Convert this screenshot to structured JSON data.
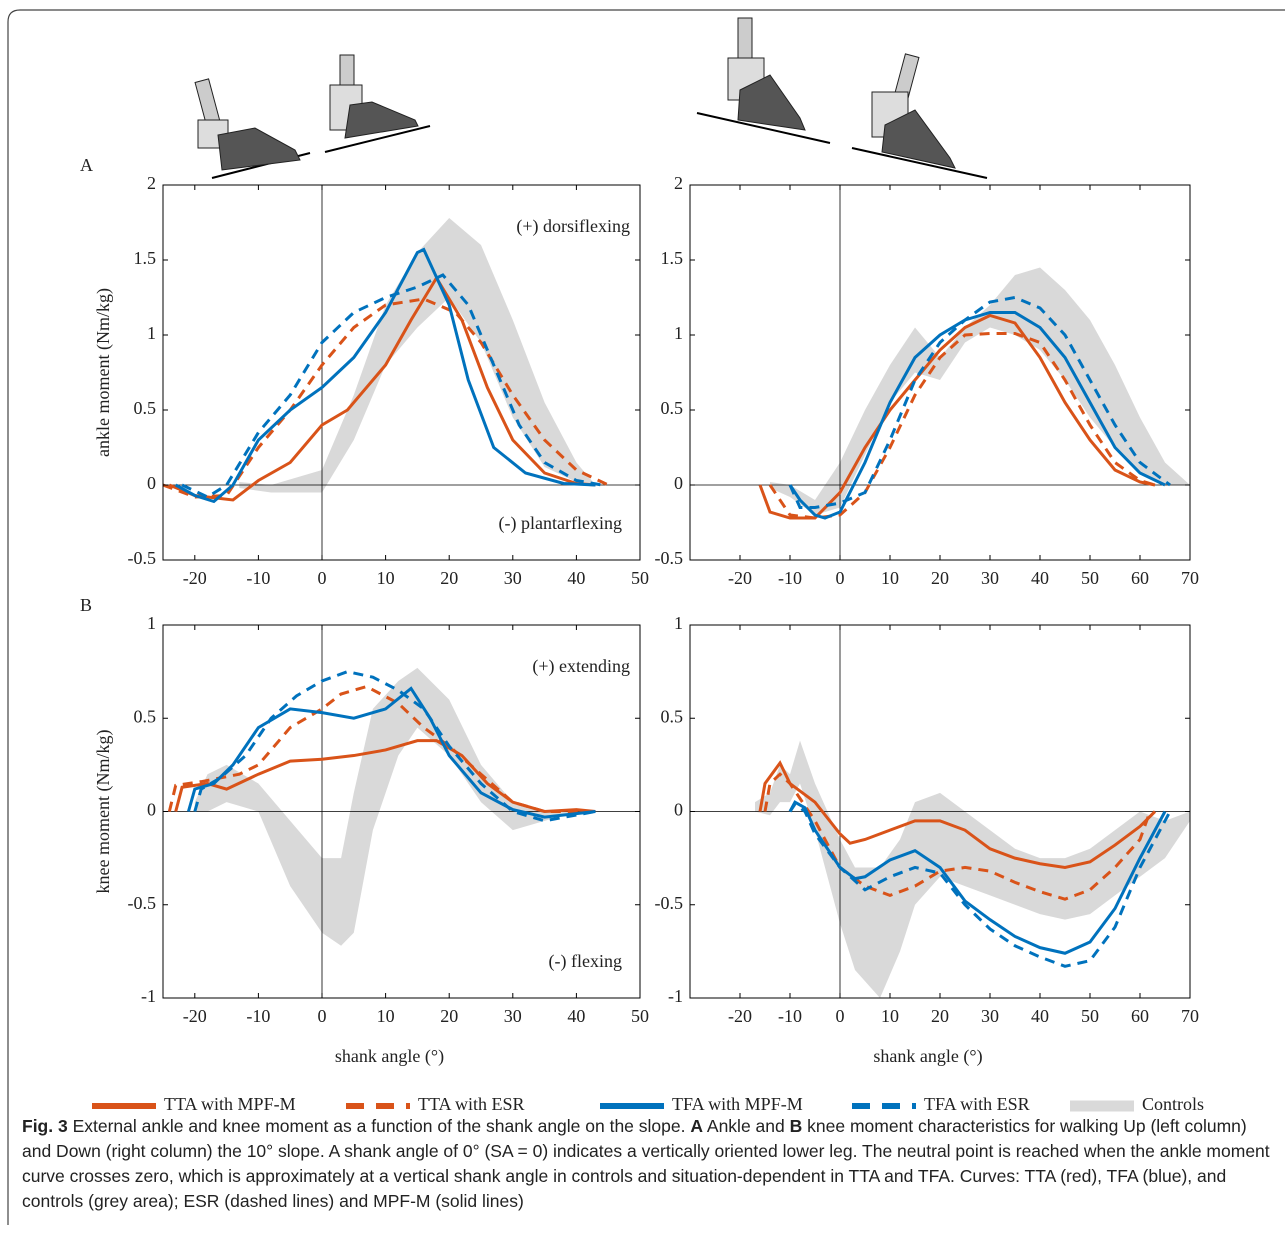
{
  "chart_data": [
    {
      "type": "line",
      "panel_label": "A",
      "ylabel": "ankle moment (Nm/kg)",
      "annotations": [
        "(+) dorsiflexing",
        "(-) plantarflexing"
      ],
      "xlim": [
        -25,
        50
      ],
      "ylim": [
        -0.5,
        2
      ],
      "xticks": [
        -20,
        -10,
        0,
        10,
        20,
        30,
        40,
        50
      ],
      "yticks": [
        -0.5,
        0,
        0.5,
        1,
        1.5,
        2
      ],
      "band": {
        "name": "Controls",
        "color": "#d9d9d9",
        "x": [
          -13,
          -8,
          0,
          5,
          10,
          15,
          20,
          25,
          30,
          35,
          40,
          43
        ],
        "lower": [
          -0.02,
          -0.05,
          -0.05,
          0.3,
          0.8,
          1.05,
          1.25,
          0.95,
          0.45,
          0.12,
          0.02,
          0
        ],
        "upper": [
          0.02,
          0,
          0.1,
          0.6,
          1.2,
          1.55,
          1.78,
          1.6,
          1.1,
          0.55,
          0.15,
          0
        ]
      },
      "series": [
        {
          "name": "TTA with MPF-M",
          "color": "#d95319",
          "dashed": false,
          "x": [
            -24,
            -20,
            -14,
            -10,
            -5,
            0,
            4,
            10,
            14,
            18,
            22,
            26,
            30,
            35,
            40,
            43
          ],
          "values": [
            0,
            -0.07,
            -0.1,
            0.03,
            0.15,
            0.4,
            0.5,
            0.8,
            1.1,
            1.38,
            1.1,
            0.65,
            0.3,
            0.08,
            0.01,
            0
          ]
        },
        {
          "name": "TTA with ESR",
          "color": "#d95319",
          "dashed": true,
          "x": [
            -25,
            -20,
            -15,
            -10,
            -5,
            0,
            5,
            10,
            16,
            21,
            25,
            30,
            35,
            40,
            45
          ],
          "values": [
            0,
            -0.08,
            -0.07,
            0.25,
            0.5,
            0.8,
            1.05,
            1.2,
            1.24,
            1.15,
            0.95,
            0.6,
            0.3,
            0.1,
            0
          ]
        },
        {
          "name": "TFA with MPF-M",
          "color": "#0072bd",
          "dashed": false,
          "x": [
            -23,
            -20,
            -17,
            -14,
            -10,
            -5,
            0,
            5,
            10,
            15,
            16,
            20,
            23,
            27,
            32,
            38,
            43
          ],
          "values": [
            0,
            -0.07,
            -0.11,
            0,
            0.3,
            0.5,
            0.65,
            0.85,
            1.15,
            1.55,
            1.57,
            1.2,
            0.7,
            0.25,
            0.08,
            0.01,
            0
          ]
        },
        {
          "name": "TFA with ESR",
          "color": "#0072bd",
          "dashed": true,
          "x": [
            -22,
            -18,
            -15,
            -10,
            -5,
            0,
            5,
            10,
            15,
            19,
            23,
            27,
            31,
            35,
            40,
            44
          ],
          "values": [
            0,
            -0.08,
            0,
            0.35,
            0.6,
            0.95,
            1.15,
            1.25,
            1.32,
            1.4,
            1.2,
            0.8,
            0.4,
            0.15,
            0.03,
            0
          ]
        }
      ]
    },
    {
      "type": "line",
      "xlim": [
        -30,
        70
      ],
      "ylim": [
        -0.5,
        2
      ],
      "xticks": [
        -20,
        -10,
        0,
        10,
        20,
        30,
        40,
        50,
        60,
        70
      ],
      "yticks": [
        -0.5,
        0,
        0.5,
        1,
        1.5,
        2
      ],
      "band": {
        "color": "#d9d9d9",
        "x": [
          -14,
          -10,
          -5,
          0,
          5,
          10,
          15,
          20,
          25,
          30,
          35,
          40,
          45,
          50,
          55,
          60,
          65,
          70
        ],
        "lower": [
          -0.02,
          -0.08,
          -0.2,
          -0.15,
          0.2,
          0.55,
          0.75,
          0.7,
          0.95,
          1.05,
          1.0,
          0.9,
          0.7,
          0.45,
          0.25,
          0.08,
          0,
          0
        ],
        "upper": [
          0.02,
          0,
          -0.1,
          0.15,
          0.5,
          0.8,
          1.05,
          0.85,
          1.05,
          1.2,
          1.4,
          1.45,
          1.3,
          1.1,
          0.8,
          0.45,
          0.15,
          0
        ]
      },
      "series": [
        {
          "color": "#d95319",
          "dashed": false,
          "x": [
            -16,
            -14,
            -10,
            -5,
            0,
            5,
            10,
            20,
            25,
            30,
            35,
            40,
            45,
            50,
            55,
            60,
            63
          ],
          "values": [
            0,
            -0.18,
            -0.22,
            -0.22,
            -0.05,
            0.25,
            0.5,
            0.9,
            1.05,
            1.13,
            1.08,
            0.85,
            0.55,
            0.3,
            0.1,
            0.02,
            0
          ]
        },
        {
          "color": "#d95319",
          "dashed": true,
          "x": [
            -14,
            -10,
            -5,
            0,
            5,
            10,
            15,
            20,
            25,
            30,
            35,
            40,
            45,
            50,
            55,
            60,
            63
          ],
          "values": [
            0,
            -0.2,
            -0.22,
            -0.2,
            -0.05,
            0.25,
            0.6,
            0.85,
            1.0,
            1.01,
            1.01,
            0.95,
            0.7,
            0.4,
            0.15,
            0.03,
            0
          ]
        },
        {
          "color": "#0072bd",
          "dashed": false,
          "x": [
            -10,
            -8,
            -5,
            -3,
            0,
            5,
            10,
            15,
            20,
            25,
            30,
            35,
            40,
            45,
            50,
            55,
            60,
            65
          ],
          "values": [
            0,
            -0.1,
            -0.2,
            -0.22,
            -0.18,
            0.15,
            0.55,
            0.85,
            1.0,
            1.1,
            1.15,
            1.15,
            1.05,
            0.85,
            0.55,
            0.25,
            0.08,
            0
          ]
        },
        {
          "color": "#0072bd",
          "dashed": true,
          "x": [
            -10,
            -8,
            -5,
            0,
            5,
            10,
            15,
            20,
            25,
            30,
            35,
            40,
            45,
            50,
            55,
            60,
            66
          ],
          "values": [
            0,
            -0.15,
            -0.15,
            -0.12,
            -0.05,
            0.3,
            0.7,
            0.95,
            1.1,
            1.22,
            1.25,
            1.18,
            1.0,
            0.7,
            0.4,
            0.15,
            0
          ]
        }
      ]
    },
    {
      "type": "line",
      "panel_label": "B",
      "ylabel": "knee moment (Nm/kg)",
      "xlabel": "shank angle (°)",
      "annotations": [
        "(+) extending",
        "(-) flexing"
      ],
      "xlim": [
        -25,
        50
      ],
      "ylim": [
        -1,
        1
      ],
      "xticks": [
        -20,
        -10,
        0,
        10,
        20,
        30,
        40,
        50
      ],
      "yticks": [
        -1,
        -0.5,
        0,
        0.5,
        1
      ],
      "band": {
        "color": "#d9d9d9",
        "x": [
          -20,
          -18,
          -15,
          -10,
          -5,
          0,
          3,
          5,
          8,
          12,
          15,
          20,
          25,
          30,
          35,
          40
        ],
        "lower": [
          0,
          0,
          0.05,
          0,
          -0.4,
          -0.65,
          -0.72,
          -0.65,
          -0.1,
          0.3,
          0.45,
          0.3,
          0.05,
          -0.1,
          -0.05,
          0
        ],
        "upper": [
          0.05,
          0.2,
          0.25,
          0.15,
          -0.05,
          -0.25,
          -0.25,
          0.1,
          0.55,
          0.7,
          0.77,
          0.6,
          0.25,
          0.05,
          0,
          0
        ]
      },
      "series": [
        {
          "color": "#d95319",
          "dashed": false,
          "x": [
            -23,
            -22,
            -18,
            -15,
            -10,
            -5,
            0,
            5,
            10,
            15,
            18,
            22,
            26,
            30,
            35,
            40,
            43
          ],
          "values": [
            0,
            0.13,
            0.15,
            0.12,
            0.2,
            0.27,
            0.28,
            0.3,
            0.33,
            0.38,
            0.38,
            0.3,
            0.15,
            0.05,
            0,
            0.01,
            0
          ]
        },
        {
          "color": "#d95319",
          "dashed": true,
          "x": [
            -24,
            -23,
            -19,
            -13,
            -10,
            -5,
            0,
            3,
            7,
            12,
            16,
            20,
            25,
            30,
            35,
            43
          ],
          "values": [
            0,
            0.14,
            0.16,
            0.2,
            0.25,
            0.45,
            0.55,
            0.63,
            0.67,
            0.58,
            0.45,
            0.35,
            0.2,
            0.05,
            0,
            0
          ]
        },
        {
          "color": "#0072bd",
          "dashed": false,
          "x": [
            -21,
            -20,
            -17,
            -14,
            -10,
            -5,
            0,
            5,
            10,
            14,
            17,
            20,
            25,
            30,
            35,
            43
          ],
          "values": [
            0,
            0.12,
            0.15,
            0.25,
            0.45,
            0.55,
            0.53,
            0.5,
            0.55,
            0.66,
            0.5,
            0.3,
            0.1,
            0.01,
            -0.03,
            0
          ]
        },
        {
          "color": "#0072bd",
          "dashed": true,
          "x": [
            -20,
            -19,
            -16,
            -12,
            -8,
            -4,
            0,
            4,
            8,
            12,
            16,
            20,
            25,
            30,
            35,
            43
          ],
          "values": [
            0,
            0.12,
            0.18,
            0.3,
            0.5,
            0.62,
            0.7,
            0.75,
            0.72,
            0.65,
            0.55,
            0.35,
            0.15,
            0,
            -0.05,
            0
          ]
        }
      ]
    },
    {
      "type": "line",
      "xlabel": "shank angle (°)",
      "xlim": [
        -30,
        70
      ],
      "ylim": [
        -1,
        1
      ],
      "xticks": [
        -20,
        -10,
        0,
        10,
        20,
        30,
        40,
        50,
        60,
        70
      ],
      "yticks": [
        -1,
        -0.5,
        0,
        0.5,
        1
      ],
      "band": {
        "color": "#d9d9d9",
        "x": [
          -17,
          -14,
          -12,
          -10,
          -8,
          -5,
          0,
          3,
          8,
          12,
          15,
          20,
          25,
          30,
          35,
          40,
          45,
          50,
          55,
          60,
          65,
          70
        ],
        "lower": [
          0,
          -0.02,
          0.05,
          0.05,
          0.15,
          -0.1,
          -0.6,
          -0.85,
          -1,
          -0.75,
          -0.5,
          -0.35,
          -0.4,
          -0.45,
          -0.5,
          -0.55,
          -0.58,
          -0.55,
          -0.45,
          -0.35,
          -0.25,
          -0.05
        ],
        "upper": [
          0.05,
          0.1,
          0.25,
          0.2,
          0.38,
          0.15,
          -0.15,
          -0.3,
          -0.3,
          -0.15,
          0.05,
          0.1,
          0,
          -0.1,
          -0.2,
          -0.25,
          -0.25,
          -0.2,
          -0.1,
          0,
          -0.05,
          0
        ]
      },
      "series": [
        {
          "color": "#d95319",
          "dashed": false,
          "x": [
            -16,
            -15,
            -12,
            -10,
            -5,
            0,
            2,
            5,
            10,
            15,
            20,
            25,
            30,
            35,
            40,
            45,
            50,
            55,
            60,
            63
          ],
          "values": [
            0,
            0.15,
            0.26,
            0.15,
            0.05,
            -0.12,
            -0.17,
            -0.15,
            -0.1,
            -0.05,
            -0.05,
            -0.1,
            -0.2,
            -0.25,
            -0.28,
            -0.3,
            -0.27,
            -0.18,
            -0.08,
            0
          ]
        },
        {
          "color": "#d95319",
          "dashed": true,
          "x": [
            -15,
            -14,
            -12,
            -10,
            -5,
            0,
            5,
            10,
            15,
            20,
            25,
            30,
            35,
            40,
            45,
            50,
            55,
            60,
            62
          ],
          "values": [
            0,
            0.15,
            0.2,
            0.15,
            -0.05,
            -0.3,
            -0.4,
            -0.45,
            -0.4,
            -0.32,
            -0.3,
            -0.32,
            -0.38,
            -0.43,
            -0.47,
            -0.42,
            -0.3,
            -0.15,
            0
          ]
        },
        {
          "color": "#0072bd",
          "dashed": false,
          "x": [
            -10,
            -9,
            -7,
            -5,
            0,
            3,
            5,
            10,
            15,
            20,
            25,
            30,
            35,
            40,
            45,
            50,
            55,
            60,
            65
          ],
          "values": [
            0,
            0.05,
            0.02,
            -0.1,
            -0.3,
            -0.36,
            -0.35,
            -0.26,
            -0.21,
            -0.3,
            -0.48,
            -0.58,
            -0.67,
            -0.73,
            -0.76,
            -0.7,
            -0.52,
            -0.25,
            0
          ]
        },
        {
          "color": "#0072bd",
          "dashed": true,
          "x": [
            -10,
            -9,
            -7,
            -5,
            0,
            5,
            10,
            15,
            20,
            25,
            30,
            35,
            40,
            45,
            50,
            55,
            60,
            66
          ],
          "values": [
            0,
            0.04,
            0,
            -0.12,
            -0.3,
            -0.42,
            -0.35,
            -0.3,
            -0.33,
            -0.5,
            -0.63,
            -0.72,
            -0.78,
            -0.83,
            -0.8,
            -0.62,
            -0.3,
            0
          ]
        }
      ]
    }
  ],
  "caption": {
    "label": "Fig. 3",
    "text1": "External ankle and knee moment as a function of the shank angle on the slope.",
    "bold1": "A",
    "text2": "Ankle and",
    "bold2": "B",
    "text3": "knee moment characteristics for walking Up (left column) and Down (right column) the 10° slope. A shank angle of 0° (SA = 0) indicates a vertically oriented lower leg. The neutral point is reached when the ankle moment curve crosses zero, which is approximately at a vertical shank angle in controls and situation-dependent in TTA and TFA. Curves: TTA (red), TFA (blue), and controls (grey area); ESR (dashed lines) and MPF-M (solid lines)"
  }
}
